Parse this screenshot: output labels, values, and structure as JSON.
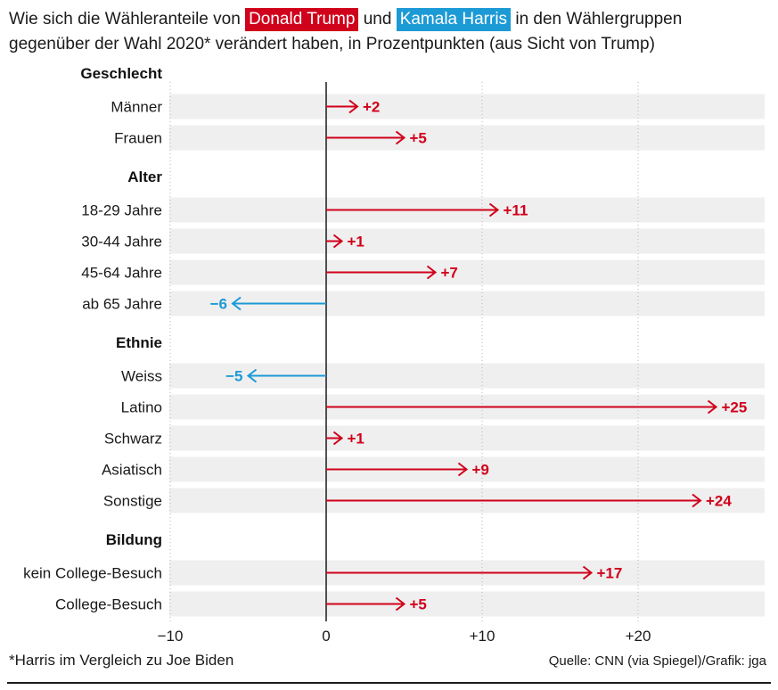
{
  "title": {
    "part1": "Wie sich die Wähleranteile von",
    "trump": "Donald Trump",
    "part2": "und",
    "harris": "Kamala Harris",
    "part3": "in den Wählergruppen",
    "line2": "gegenüber der Wahl 2020* verändert haben, in Prozentpunkten (aus Sicht von Trump)"
  },
  "colors": {
    "trump": "#d0021b",
    "harris": "#1c9ad6",
    "band": "#efefef",
    "axis": "#1a1a1a",
    "grid": "#b5b5b5"
  },
  "chart_data": {
    "type": "bar",
    "orientation": "horizontal",
    "unit": "Prozentpunkte",
    "xlim": [
      -10,
      28
    ],
    "xticks": [
      -10,
      0,
      10,
      20
    ],
    "xtick_labels": [
      "−10",
      "0",
      "+10",
      "+20"
    ],
    "groups": [
      {
        "name": "Geschlecht",
        "items": [
          {
            "label": "Männer",
            "value": 2,
            "value_label": "+2"
          },
          {
            "label": "Frauen",
            "value": 5,
            "value_label": "+5"
          }
        ]
      },
      {
        "name": "Alter",
        "items": [
          {
            "label": "18-29 Jahre",
            "value": 11,
            "value_label": "+11"
          },
          {
            "label": "30-44 Jahre",
            "value": 1,
            "value_label": "+1"
          },
          {
            "label": "45-64 Jahre",
            "value": 7,
            "value_label": "+7"
          },
          {
            "label": "ab 65 Jahre",
            "value": -6,
            "value_label": "−6"
          }
        ]
      },
      {
        "name": "Ethnie",
        "items": [
          {
            "label": "Weiss",
            "value": -5,
            "value_label": "−5"
          },
          {
            "label": "Latino",
            "value": 25,
            "value_label": "+25"
          },
          {
            "label": "Schwarz",
            "value": 1,
            "value_label": "+1"
          },
          {
            "label": "Asiatisch",
            "value": 9,
            "value_label": "+9"
          },
          {
            "label": "Sonstige",
            "value": 24,
            "value_label": "+24"
          }
        ]
      },
      {
        "name": "Bildung",
        "items": [
          {
            "label": "kein College-Besuch",
            "value": 17,
            "value_label": "+17"
          },
          {
            "label": "College-Besuch",
            "value": 5,
            "value_label": "+5"
          }
        ]
      }
    ]
  },
  "footnote": "*Harris im Vergleich zu Joe Biden",
  "source": "Quelle: CNN (via Spiegel)/Grafik: jga"
}
